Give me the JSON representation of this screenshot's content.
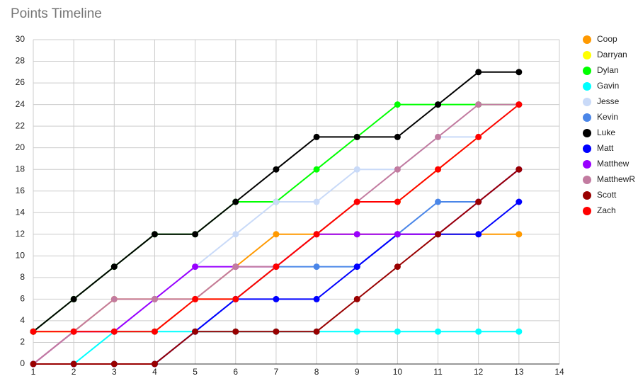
{
  "chart_data": {
    "type": "line",
    "title": "Points Timeline",
    "x": [
      1,
      2,
      3,
      4,
      5,
      6,
      7,
      8,
      9,
      10,
      11,
      12,
      13
    ],
    "xlim": [
      1,
      14
    ],
    "xticks": [
      1,
      2,
      3,
      4,
      5,
      6,
      7,
      8,
      9,
      10,
      11,
      12,
      13,
      14
    ],
    "ylim": [
      0,
      30
    ],
    "yticks": [
      0,
      2,
      4,
      6,
      8,
      10,
      12,
      14,
      16,
      18,
      20,
      22,
      24,
      26,
      28,
      30
    ],
    "grid": true,
    "legend": "right",
    "series": [
      {
        "name": "Coop",
        "color": "#ff9900",
        "values": [
          0,
          3,
          6,
          6,
          6,
          9,
          12,
          12,
          12,
          12,
          12,
          12,
          12
        ]
      },
      {
        "name": "Darryan",
        "color": "#ffff00",
        "values": [
          3,
          3,
          3,
          3,
          6,
          6,
          9,
          12,
          15,
          15,
          18,
          21,
          24
        ]
      },
      {
        "name": "Dylan",
        "color": "#00ff00",
        "values": [
          3,
          6,
          9,
          12,
          12,
          15,
          15,
          18,
          21,
          24,
          24,
          24,
          24
        ]
      },
      {
        "name": "Gavin",
        "color": "#00ffff",
        "values": [
          0,
          0,
          3,
          3,
          3,
          3,
          3,
          3,
          3,
          3,
          3,
          3,
          3
        ]
      },
      {
        "name": "Jesse",
        "color": "#c9daf8",
        "values": [
          0,
          3,
          3,
          6,
          9,
          12,
          15,
          15,
          18,
          18,
          21,
          21,
          24
        ]
      },
      {
        "name": "Kevin",
        "color": "#4a86e8",
        "values": [
          0,
          0,
          0,
          0,
          3,
          6,
          9,
          9,
          9,
          12,
          15,
          15,
          18
        ]
      },
      {
        "name": "Luke",
        "color": "#000000",
        "values": [
          3,
          6,
          9,
          12,
          12,
          15,
          18,
          21,
          21,
          21,
          24,
          27,
          27
        ]
      },
      {
        "name": "Matt",
        "color": "#0000ff",
        "values": [
          0,
          0,
          0,
          0,
          3,
          6,
          6,
          6,
          9,
          12,
          12,
          12,
          15
        ]
      },
      {
        "name": "Matthew",
        "color": "#9900ff",
        "values": [
          0,
          3,
          3,
          6,
          9,
          9,
          9,
          12,
          12,
          12,
          12,
          15,
          18
        ]
      },
      {
        "name": "MatthewR",
        "color": "#c27ba0",
        "values": [
          0,
          3,
          6,
          6,
          6,
          9,
          9,
          12,
          15,
          18,
          21,
          24,
          24
        ]
      },
      {
        "name": "Scott",
        "color": "#990000",
        "values": [
          0,
          0,
          0,
          0,
          3,
          3,
          3,
          3,
          6,
          9,
          12,
          15,
          18
        ]
      },
      {
        "name": "Zach",
        "color": "#ff0000",
        "values": [
          3,
          3,
          3,
          3,
          6,
          6,
          9,
          12,
          15,
          15,
          18,
          21,
          24
        ]
      }
    ]
  }
}
